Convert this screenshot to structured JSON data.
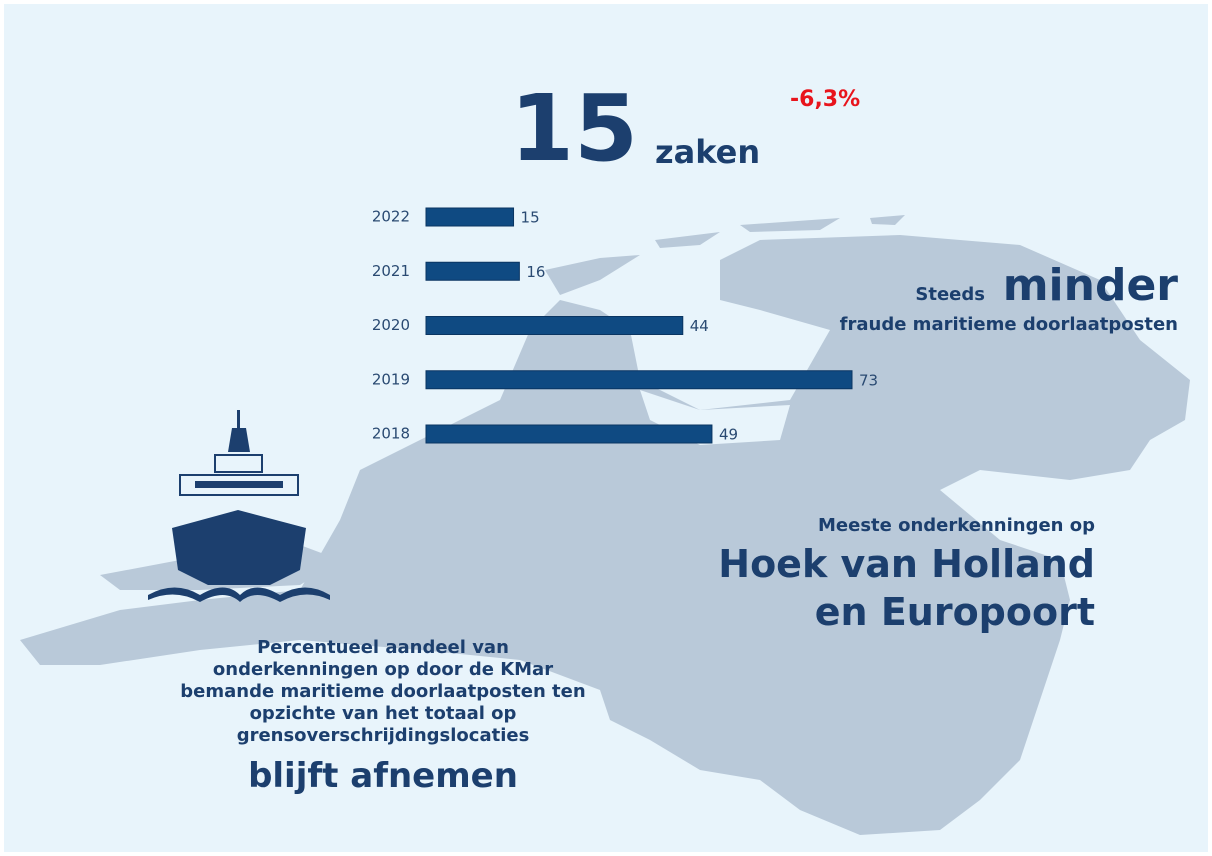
{
  "chart_data": {
    "type": "bar",
    "orientation": "horizontal",
    "categories": [
      "2022",
      "2021",
      "2020",
      "2019",
      "2018"
    ],
    "values": [
      15,
      16,
      44,
      73,
      49
    ],
    "color": "#0f4a82"
  },
  "headline": {
    "number": "15",
    "unit": "zaken",
    "change": "-6,3%"
  },
  "right_top": {
    "prefix": "Steeds",
    "emphasis": "minder",
    "line": "fraude maritieme doorlaatposten"
  },
  "right_bottom": {
    "intro": "Meeste onderkenningen op",
    "line1": "Hoek van Holland",
    "line2": "en Europoort"
  },
  "left_bottom": {
    "lines": [
      "Percentueel aandeel van",
      "onderkenningen op door de KMar",
      "bemande maritieme doorlaatposten ten",
      "opzichte van het totaal op",
      "grensoverschrijdingslocaties"
    ],
    "emphasis": "blijft afnemen"
  }
}
